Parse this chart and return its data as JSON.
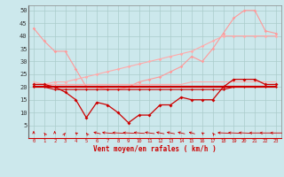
{
  "xlabel": "Vent moyen/en rafales ( km/h )",
  "background_color": "#cce8ec",
  "grid_color": "#aacccc",
  "x": [
    0,
    1,
    2,
    3,
    4,
    5,
    6,
    7,
    8,
    9,
    10,
    11,
    12,
    13,
    14,
    15,
    16,
    17,
    18,
    19,
    20,
    21,
    22,
    23
  ],
  "ylim": [
    0,
    52
  ],
  "yticks": [
    5,
    10,
    15,
    20,
    25,
    30,
    35,
    40,
    45,
    50
  ],
  "line1_color": "#ff9999",
  "line1_y": [
    43,
    38,
    34,
    34,
    27,
    20,
    20,
    19,
    19,
    20,
    22,
    23,
    24,
    26,
    28,
    32,
    30,
    35,
    41,
    47,
    50,
    50,
    42,
    41
  ],
  "line2_color": "#ffaaaa",
  "line2_y": [
    22,
    21,
    21,
    21,
    21,
    21,
    21,
    21,
    21,
    21,
    21,
    21,
    21,
    21,
    21,
    22,
    22,
    22,
    22,
    22,
    22,
    22,
    22,
    22
  ],
  "line3_color": "#ffaaaa",
  "line3_y": [
    21,
    21,
    22,
    22,
    23,
    24,
    25,
    26,
    27,
    28,
    29,
    30,
    31,
    32,
    33,
    34,
    36,
    38,
    40,
    40,
    40,
    40,
    40,
    40
  ],
  "line4_color": "#cc0000",
  "line4_y": [
    21,
    21,
    20,
    18,
    15,
    8,
    14,
    13,
    10,
    6,
    9,
    9,
    13,
    13,
    16,
    15,
    15,
    15,
    20,
    23,
    23,
    23,
    21,
    21
  ],
  "line5_color": "#cc0000",
  "line5_y": [
    20,
    20,
    20,
    20,
    20,
    20,
    20,
    20,
    20,
    20,
    20,
    20,
    20,
    20,
    20,
    20,
    20,
    20,
    20,
    20,
    20,
    20,
    20,
    20
  ],
  "line6_color": "#cc0000",
  "line6_y": [
    20,
    20,
    19,
    19,
    19,
    19,
    19,
    19,
    19,
    19,
    19,
    19,
    19,
    19,
    19,
    19,
    19,
    19,
    19,
    20,
    20,
    20,
    20,
    20
  ],
  "wind_arrow_color": "#cc0000",
  "wind_arrow_angles": [
    180,
    190,
    180,
    170,
    200,
    190,
    225,
    250,
    260,
    260,
    250,
    240,
    230,
    230,
    225,
    220,
    200,
    190,
    260,
    260,
    260,
    270,
    270,
    270
  ]
}
